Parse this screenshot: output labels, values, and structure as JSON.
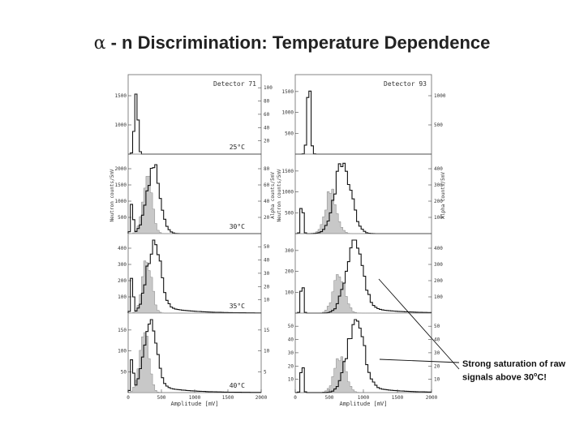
{
  "title": {
    "alpha": "α",
    "rest": " - n Discrimination:  Temperature Dependence"
  },
  "annotation": {
    "line1": "Strong saturation of raw",
    "line2_pre": "signals above 30",
    "sup": "o",
    "line2_post": "C!"
  },
  "chart_data": [
    {
      "type": "area",
      "panel": "Detector 71",
      "xlabel": "Amplitude [mV]",
      "ylabel_left": "Neutron counts/5mV",
      "ylabel_right": "Alpha counts/5mV",
      "xlim": [
        0,
        2000
      ],
      "xticks": [
        "0",
        "500",
        "1000",
        "1500",
        "2000"
      ],
      "rows": [
        {
          "temperature": "25°C",
          "left_ticks": [
            "1000",
            "1500"
          ],
          "right_ticks": [
            "20",
            "40",
            "60",
            "80",
            "100"
          ],
          "neutron_peak": 1650,
          "alpha_peak_rel": 0.0,
          "peak_mv": 120
        },
        {
          "temperature": "30°C",
          "left_ticks": [
            "500",
            "1000",
            "1500",
            "2000"
          ],
          "right_ticks": [
            "20",
            "40",
            "60",
            "80"
          ],
          "neutron_peak": 2000,
          "alpha_peak_rel": 0.85,
          "peak_mv": 380
        },
        {
          "temperature": "35°C",
          "left_ticks": [
            "100",
            "200",
            "300",
            "400"
          ],
          "right_ticks": [
            "10",
            "20",
            "30",
            "40",
            "50"
          ],
          "neutron_peak": 400,
          "alpha_peak_rel": 0.75,
          "peak_mv": 380
        },
        {
          "temperature": "40°C",
          "left_ticks": [
            "50",
            "100",
            "150"
          ],
          "right_ticks": [
            "5",
            "10",
            "15"
          ],
          "neutron_peak": 160,
          "alpha_peak_rel": 0.9,
          "peak_mv": 320
        }
      ]
    },
    {
      "type": "area",
      "panel": "Detector 93",
      "xlabel": "Amplitude [mV]",
      "ylabel_left": "Neutron counts/5mV",
      "ylabel_right": "Alpha counts/5mV",
      "xlim": [
        0,
        2000
      ],
      "xticks": [
        "0",
        "500",
        "1000",
        "1500",
        "2000"
      ],
      "rows": [
        {
          "temperature": "",
          "left_ticks": [
            "500",
            "1000",
            "1500"
          ],
          "right_ticks": [
            "500",
            "1000"
          ],
          "neutron_peak": 1650,
          "alpha_peak_rel": 0.0,
          "peak_mv": 200
        },
        {
          "temperature": "",
          "left_ticks": [
            "500",
            "1000",
            "1500"
          ],
          "right_ticks": [
            "100",
            "200",
            "300",
            "400"
          ],
          "neutron_peak": 1500,
          "alpha_peak_rel": 0.6,
          "peak_mv": 700
        },
        {
          "temperature": "",
          "left_ticks": [
            "100",
            "200",
            "300"
          ],
          "right_ticks": [
            "100",
            "200",
            "300",
            "400"
          ],
          "neutron_peak": 320,
          "alpha_peak_rel": 0.55,
          "peak_mv": 860
        },
        {
          "temperature": "",
          "left_ticks": [
            "10",
            "20",
            "30",
            "40",
            "50"
          ],
          "right_ticks": [
            "10",
            "20",
            "30",
            "40",
            "50"
          ],
          "neutron_peak": 53,
          "alpha_peak_rel": 0.5,
          "peak_mv": 880
        }
      ]
    }
  ]
}
